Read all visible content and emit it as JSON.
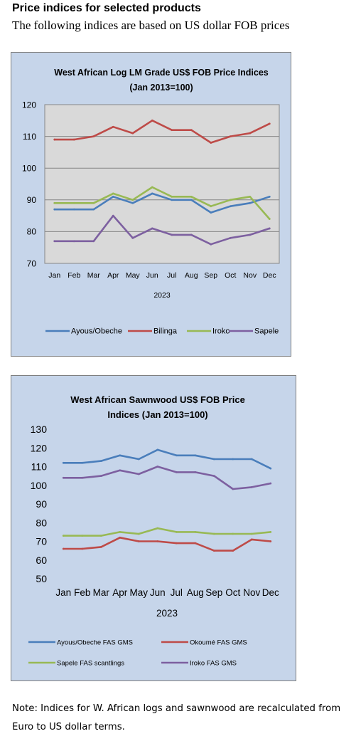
{
  "header": {
    "title": "Price indices for selected products",
    "subtitle": "The following indices are based on US dollar FOB prices"
  },
  "note": "Note: Indices for W. African logs and sawnwood are recalculated from Euro to US dollar terms.",
  "chart_data": [
    {
      "type": "line",
      "title_lines": [
        "West African Log LM Grade US$ FOB Price Indices",
        "(Jan 2013=100)"
      ],
      "categories": [
        "Jan",
        "Feb",
        "Mar",
        "Apr",
        "May",
        "Jun",
        "Jul",
        "Aug",
        "Sep",
        "Oct",
        "Nov",
        "Dec"
      ],
      "xlabel": "2023",
      "ylim": [
        70,
        120
      ],
      "yticks": [
        70,
        80,
        90,
        100,
        110,
        120
      ],
      "grid": true,
      "legend_position": "bottom",
      "series": [
        {
          "name": "Ayous/Obeche",
          "color": "#4a7ebb",
          "values": [
            87,
            87,
            87,
            91,
            89,
            92,
            90,
            90,
            86,
            88,
            89,
            91
          ]
        },
        {
          "name": "Bilinga",
          "color": "#be4b48",
          "values": [
            109,
            109,
            110,
            113,
            111,
            115,
            112,
            112,
            108,
            110,
            111,
            114
          ]
        },
        {
          "name": "Iroko",
          "color": "#98b954",
          "values": [
            89,
            89,
            89,
            92,
            90,
            94,
            91,
            91,
            88,
            90,
            91,
            84
          ]
        },
        {
          "name": "Sapele",
          "color": "#7d60a0",
          "values": [
            77,
            77,
            77,
            85,
            78,
            81,
            79,
            79,
            76,
            78,
            79,
            81
          ]
        }
      ]
    },
    {
      "type": "line",
      "title_lines": [
        "West African Sawnwood US$ FOB Price",
        "Indices (Jan 2013=100)"
      ],
      "categories": [
        "Jan",
        "Feb",
        "Mar",
        "Apr",
        "May",
        "Jun",
        "Jul",
        "Aug",
        "Sep",
        "Oct",
        "Nov",
        "Dec"
      ],
      "xlabel": "2023",
      "ylim": [
        50,
        130
      ],
      "yticks": [
        50,
        60,
        70,
        80,
        90,
        100,
        110,
        120,
        130
      ],
      "grid": false,
      "legend_position": "bottom",
      "series": [
        {
          "name": "Ayous/Obeche  FAS GMS",
          "color": "#4a7ebb",
          "values": [
            112,
            112,
            113,
            116,
            114,
            119,
            116,
            116,
            114,
            114,
            114,
            109
          ]
        },
        {
          "name": "Okoumé  FAS GMS",
          "color": "#be4b48",
          "values": [
            66,
            66,
            67,
            72,
            70,
            70,
            69,
            69,
            65,
            65,
            71,
            70
          ]
        },
        {
          "name": "Sapele FAS scantlings",
          "color": "#98b954",
          "values": [
            73,
            73,
            73,
            75,
            74,
            77,
            75,
            75,
            74,
            74,
            74,
            75
          ]
        },
        {
          "name": "Iroko FAS GMS",
          "color": "#7d60a0",
          "values": [
            104,
            104,
            105,
            108,
            106,
            110,
            107,
            107,
            105,
            98,
            99,
            101
          ]
        }
      ]
    }
  ]
}
